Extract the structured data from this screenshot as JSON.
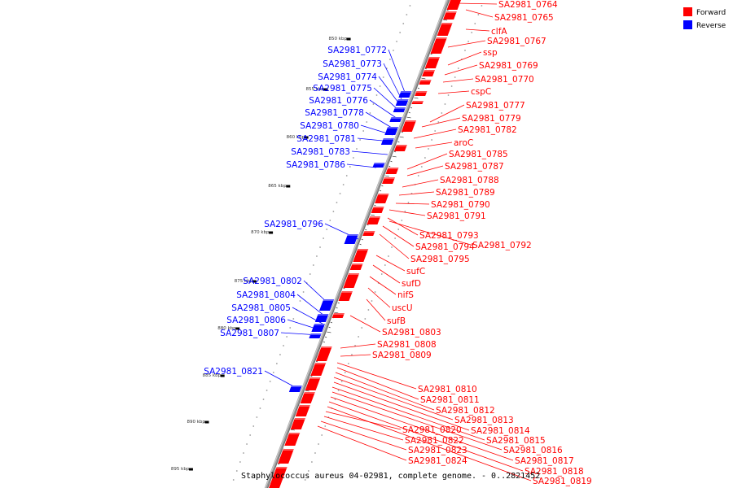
{
  "colors": {
    "forward": "#ff0000",
    "reverse": "#0000ff",
    "backbone": "#9a9a9a",
    "dot": "#999999",
    "tick": "#000000"
  },
  "legend": {
    "forward_label": "Forward",
    "reverse_label": "Reverse"
  },
  "caption": "Staphylococcus aureus 04-02981, complete genome. - 0..2821452",
  "kbp_labels": [
    "850 kbp",
    "855 kbp",
    "860 kbp",
    "865 kbp",
    "870 kbp",
    "875 kbp",
    "880 kbp",
    "885 kbp",
    "890 kbp",
    "895 kbp"
  ],
  "forward_genes": [
    "SA2981_0764",
    "SA2981_0765",
    "clfA",
    "SA2981_0767",
    "ssp",
    "SA2981_0769",
    "SA2981_0770",
    "cspC",
    "SA2981_0777",
    "SA2981_0779",
    "SA2981_0782",
    "aroC",
    "SA2981_0785",
    "SA2981_0787",
    "SA2981_0788",
    "SA2981_0789",
    "SA2981_0790",
    "SA2981_0791",
    "SA2981_0793",
    "SA2981_0794",
    "SA2981_0792",
    "SA2981_0795",
    "sufC",
    "sufD",
    "nifS",
    "uscU",
    "sufB",
    "SA2981_0803",
    "SA2981_0808",
    "SA2981_0809",
    "SA2981_0810",
    "SA2981_0811",
    "SA2981_0812",
    "SA2981_0813",
    "SA2981_0814",
    "SA2981_0815",
    "SA2981_0816",
    "SA2981_0817",
    "SA2981_0818",
    "SA2981_0819",
    "SA2981_0820",
    "SA2981_0822",
    "SA2981_0823",
    "SA2981_0824"
  ],
  "reverse_genes": [
    "SA2981_0772",
    "SA2981_0773",
    "SA2981_0774",
    "SA2981_0775",
    "SA2981_0776",
    "SA2981_0778",
    "SA2981_0780",
    "SA2981_0781",
    "SA2981_0783",
    "SA2981_0786",
    "SA2981_0796",
    "SA2981_0802",
    "SA2981_0804",
    "SA2981_0805",
    "SA2981_0806",
    "SA2981_0807",
    "SA2981_0821"
  ]
}
